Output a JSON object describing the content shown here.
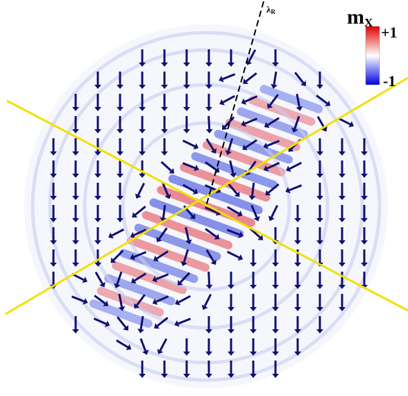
{
  "colorbar": {
    "quantity": "m",
    "subscript": "X",
    "max_label": "+1",
    "min_label": "-1"
  },
  "annotation": {
    "symbol": "λ",
    "subscript": "R"
  }
}
